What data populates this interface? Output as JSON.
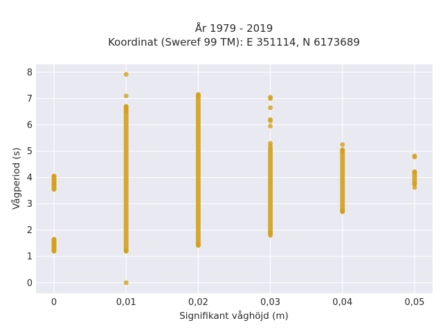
{
  "chart_data": {
    "type": "scatter",
    "title": "År 1979 - 2019",
    "subtitle": "Koordinat (Sweref 99 TM): E 351114, N 6173689",
    "xlabel": "Signifikant våghöjd (m)",
    "ylabel": "Vågperiod (s)",
    "xlim": [
      -0.0025,
      0.0525
    ],
    "ylim": [
      -0.4,
      8.3
    ],
    "x_ticks": [
      0,
      0.01,
      0.02,
      0.03,
      0.04,
      0.05
    ],
    "x_tick_labels": [
      "0",
      "0,01",
      "0,02",
      "0,03",
      "0,04",
      "0,05"
    ],
    "y_ticks": [
      0,
      1,
      2,
      3,
      4,
      5,
      6,
      7,
      8
    ],
    "y_tick_labels": [
      "0",
      "1",
      "2",
      "3",
      "4",
      "5",
      "6",
      "7",
      "8"
    ],
    "grid": true,
    "legend": "none",
    "colors": {
      "marker": "#D4A017",
      "plot_bg": "#E9E9F1",
      "grid": "#ffffff"
    },
    "series": [
      {
        "x": 0,
        "ranges": [
          [
            1.2,
            1.65
          ],
          [
            3.55,
            4.05
          ]
        ],
        "points": [
          1.2,
          1.25,
          1.3,
          1.4,
          1.45,
          1.5,
          1.55,
          1.6,
          1.65,
          3.55,
          3.7,
          3.75,
          3.85,
          3.95,
          4.0,
          4.05
        ]
      },
      {
        "x": 0.01,
        "ranges": [
          [
            1.2,
            6.7
          ]
        ],
        "points": [
          0,
          1.2,
          1.25,
          6.5,
          6.6,
          6.7,
          7.1,
          7.92
        ]
      },
      {
        "x": 0.02,
        "ranges": [
          [
            1.42,
            7.15
          ]
        ],
        "points": [
          1.42,
          1.5,
          7.1,
          7.15
        ]
      },
      {
        "x": 0.03,
        "ranges": [
          [
            1.85,
            5.1
          ]
        ],
        "points": [
          1.8,
          1.9,
          5.2,
          5.3,
          5.95,
          6.15,
          6.2,
          6.65,
          7.0,
          7.05
        ]
      },
      {
        "x": 0.04,
        "ranges": [
          [
            2.7,
            5.05
          ]
        ],
        "points": [
          2.7,
          2.75,
          5.0,
          5.05,
          5.25
        ]
      },
      {
        "x": 0.05,
        "ranges": [
          [
            3.75,
            4.22
          ]
        ],
        "points": [
          3.62,
          3.75,
          4.2,
          4.78,
          4.82
        ]
      }
    ]
  }
}
